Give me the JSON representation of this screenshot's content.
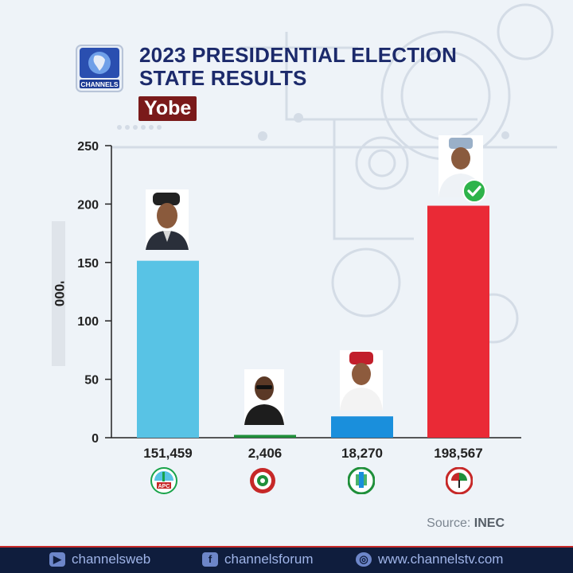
{
  "header": {
    "logo_text": "CHANNELS",
    "title_line1": "2023 PRESIDENTIAL ELECTION",
    "title_line2": "STATE RESULTS",
    "state": "Yobe"
  },
  "chart_data": {
    "type": "bar",
    "categories": [
      "APC",
      "LP",
      "NNPP",
      "PDP"
    ],
    "values": [
      151.459,
      2.406,
      18.27,
      198.567
    ],
    "value_labels": [
      "151,459",
      "2,406",
      "18,270",
      "198,567"
    ],
    "bar_colors": [
      "#58c3e5",
      "#1f8f3a",
      "#1a8fdc",
      "#ea2a36"
    ],
    "ylim": [
      0,
      250
    ],
    "yticks": [
      0,
      50,
      100,
      150,
      200,
      250
    ],
    "ylabel": "'000",
    "winner": "PDP"
  },
  "party_logos": [
    {
      "name": "APC",
      "label": "APC"
    },
    {
      "name": "LP",
      "label": ""
    },
    {
      "name": "NNPP",
      "label": ""
    },
    {
      "name": "PDP",
      "label": ""
    }
  ],
  "source": {
    "label": "Source:",
    "value": "INEC"
  },
  "footer": {
    "youtube": "channelsweb",
    "facebook": "channelsforum",
    "website": "www.channelstv.com"
  },
  "colors": {
    "title": "#1c2a6b",
    "state_badge": "#7a1a1a",
    "footer_bg": "#0f1d3d",
    "check": "#2eb34a"
  }
}
